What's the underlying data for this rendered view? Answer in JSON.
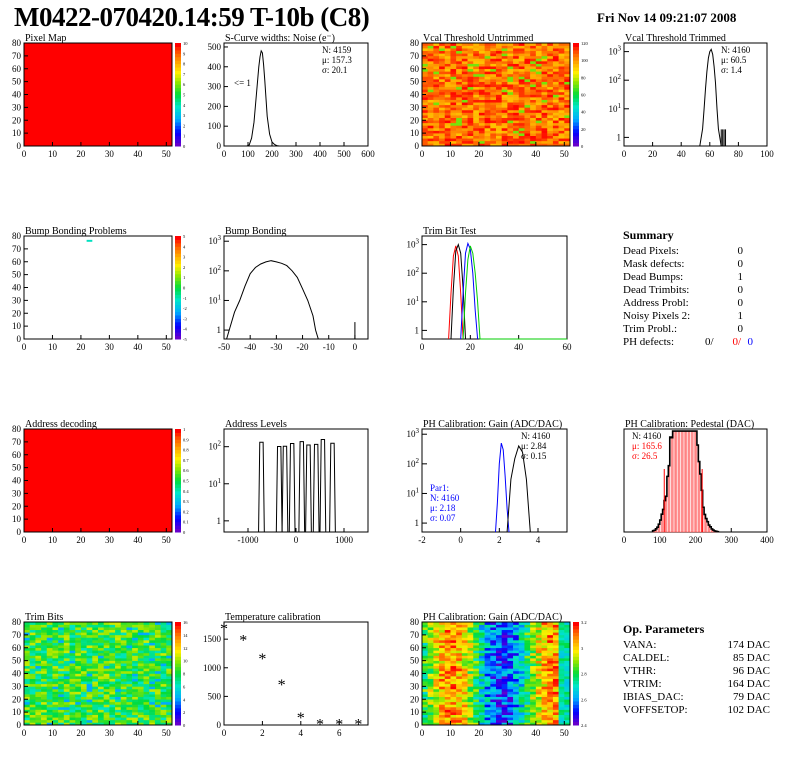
{
  "header": {
    "title": "M0422-070420.14:59 T-10b (C8)",
    "date": "Fri Nov 14 09:21:07 2008"
  },
  "summary": {
    "title": "Summary",
    "rows": [
      {
        "label": "Dead Pixels:",
        "value": "0"
      },
      {
        "label": "Mask defects:",
        "value": "0"
      },
      {
        "label": "Dead Bumps:",
        "value": "1"
      },
      {
        "label": "Dead Trimbits:",
        "value": "0"
      },
      {
        "label": "Address Probl:",
        "value": "0"
      },
      {
        "label": "Noisy Pixels 2:",
        "value": "1"
      },
      {
        "label": "Trim Probl.:",
        "value": "0"
      }
    ],
    "ph_defects": {
      "label": "PH defects:",
      "black": "0/",
      "red": "0/",
      "blue": "0"
    }
  },
  "op_params": {
    "title": "Op. Parameters",
    "rows": [
      {
        "label": "VANA:",
        "value": "174 DAC"
      },
      {
        "label": "CALDEL:",
        "value": "85 DAC"
      },
      {
        "label": "VTHR:",
        "value": "96 DAC"
      },
      {
        "label": "VTRIM:",
        "value": "164 DAC"
      },
      {
        "label": "IBIAS_DAC:",
        "value": "79 DAC"
      },
      {
        "label": "VOFFSETOP:",
        "value": "102 DAC"
      }
    ]
  },
  "colors": {
    "red": "#ff0000",
    "blue": "#0000ff",
    "green": "#00cc00",
    "black": "#000000"
  },
  "chart_data": [
    {
      "id": "pixel-map",
      "type": "heatmap",
      "title": "Pixel Map",
      "xlim": [
        0,
        52
      ],
      "ylim": [
        0,
        80
      ],
      "xticks": [
        0,
        10,
        20,
        30,
        40,
        50
      ],
      "yticks": [
        0,
        10,
        20,
        30,
        40,
        50,
        60,
        70,
        80
      ],
      "palette": "uniform-red",
      "value": 10,
      "zlim": [
        0,
        10
      ],
      "zticks": [
        "0",
        "1",
        "2",
        "3",
        "4",
        "5",
        "6",
        "7",
        "8",
        "9",
        "10"
      ]
    },
    {
      "id": "s-curve",
      "type": "line",
      "title": "S-Curve widths: Noise (e⁻)",
      "xlim": [
        0,
        600
      ],
      "ylim": [
        0,
        520
      ],
      "xticks": [
        0,
        100,
        200,
        300,
        400,
        500,
        600
      ],
      "yticks": [
        0,
        100,
        200,
        300,
        400,
        500
      ],
      "stats": [
        "N: 4159",
        "μ: 157.3",
        "σ: 20.1"
      ],
      "annotation": "<= 1",
      "series": [
        {
          "color": "#000000",
          "x": [
            95,
            105,
            115,
            125,
            135,
            145,
            150,
            155,
            160,
            165,
            170,
            175,
            180,
            190,
            200,
            210,
            220,
            230
          ],
          "y": [
            0,
            5,
            40,
            120,
            260,
            400,
            450,
            480,
            470,
            410,
            330,
            240,
            150,
            60,
            20,
            8,
            2,
            0
          ]
        }
      ]
    },
    {
      "id": "vcal-untrimmed",
      "type": "heatmap",
      "title": "Vcal Threshold Untrimmed",
      "xlim": [
        0,
        52
      ],
      "ylim": [
        0,
        80
      ],
      "xticks": [
        0,
        10,
        20,
        30,
        40,
        50
      ],
      "yticks": [
        0,
        10,
        20,
        30,
        40,
        50,
        60,
        70,
        80
      ],
      "palette": "orange-noisy",
      "zticks": [
        "0",
        "20",
        "40",
        "60",
        "80",
        "100",
        "120"
      ]
    },
    {
      "id": "vcal-trimmed",
      "type": "line",
      "title": "Vcal Threshold Trimmed",
      "log": true,
      "xlim": [
        0,
        100
      ],
      "ylim": [
        0.5,
        2000
      ],
      "xticks": [
        0,
        20,
        40,
        60,
        80,
        100
      ],
      "stats": [
        "N: 4160",
        "μ: 60.5",
        "σ:  1.4"
      ],
      "series": [
        {
          "color": "#000000",
          "x": [
            53,
            55,
            56,
            57,
            58,
            59,
            60,
            61,
            62,
            63,
            64,
            65,
            66,
            67,
            68
          ],
          "y": [
            0.5,
            2,
            10,
            50,
            200,
            600,
            1000,
            1200,
            800,
            300,
            80,
            10,
            2,
            1,
            0.5
          ]
        }
      ],
      "spikes": [
        {
          "x": 68,
          "y": 1
        },
        {
          "x": 69,
          "y": 1
        },
        {
          "x": 70,
          "y": 1
        },
        {
          "x": 71,
          "y": 1
        }
      ]
    },
    {
      "id": "bump-map",
      "type": "heatmap",
      "title": "Bump Bonding Problems",
      "xlim": [
        0,
        52
      ],
      "ylim": [
        0,
        80
      ],
      "xticks": [
        0,
        10,
        20,
        30,
        40,
        50
      ],
      "yticks": [
        0,
        10,
        20,
        30,
        40,
        50,
        60,
        70,
        80
      ],
      "palette": "empty",
      "zticks": [
        "-5",
        "-4",
        "-3",
        "-2",
        "-1",
        "0",
        "1",
        "2",
        "3",
        "4",
        "5"
      ],
      "cells": [
        {
          "x": 22,
          "y": 77
        }
      ]
    },
    {
      "id": "bump-bonding",
      "type": "line",
      "title": "Bump Bonding",
      "log": true,
      "xlim": [
        -50,
        5
      ],
      "ylim": [
        0.5,
        1500
      ],
      "xticks": [
        -50,
        -40,
        -30,
        -20,
        -10,
        0
      ],
      "series": [
        {
          "color": "#000000",
          "x": [
            -49,
            -48,
            -46,
            -44,
            -42,
            -40,
            -38,
            -36,
            -34,
            -32,
            -30,
            -28,
            -26,
            -24,
            -22,
            -20,
            -18,
            -16,
            -15,
            -14
          ],
          "y": [
            0.5,
            1,
            4,
            10,
            30,
            80,
            130,
            170,
            200,
            220,
            200,
            180,
            150,
            100,
            60,
            25,
            10,
            3,
            1,
            0.5
          ]
        }
      ],
      "spikes": [
        {
          "x": 0,
          "y": 1
        }
      ]
    },
    {
      "id": "trim-bit-test",
      "type": "line",
      "title": "Trim Bit Test",
      "log": true,
      "xlim": [
        0,
        60
      ],
      "ylim": [
        0.5,
        2000
      ],
      "xticks": [
        0,
        20,
        40,
        60
      ],
      "series": [
        {
          "color": "#ff0000",
          "x": [
            11,
            12,
            13,
            14,
            15,
            16,
            17
          ],
          "y": [
            0.5,
            20,
            400,
            900,
            400,
            20,
            0.5
          ]
        },
        {
          "color": "#000000",
          "x": [
            12,
            13,
            14,
            15,
            16,
            17,
            18
          ],
          "y": [
            0.5,
            30,
            600,
            1000,
            500,
            30,
            0.5
          ]
        },
        {
          "color": "#0000ff",
          "x": [
            16,
            17,
            18,
            19,
            20,
            21,
            22,
            23
          ],
          "y": [
            0.5,
            20,
            500,
            1100,
            700,
            100,
            5,
            0.5
          ]
        },
        {
          "color": "#00cc00",
          "x": [
            17,
            18,
            19,
            20,
            21,
            22,
            23,
            24,
            40,
            60
          ],
          "y": [
            0.5,
            20,
            300,
            900,
            500,
            100,
            10,
            0.5,
            0.5,
            0.5
          ]
        }
      ]
    },
    {
      "id": "address-decoding",
      "type": "heatmap",
      "title": "Address decoding",
      "xlim": [
        0,
        52
      ],
      "ylim": [
        0,
        80
      ],
      "xticks": [
        0,
        10,
        20,
        30,
        40,
        50
      ],
      "yticks": [
        0,
        10,
        20,
        30,
        40,
        50,
        60,
        70,
        80
      ],
      "palette": "uniform-red",
      "value": 1,
      "zticks": [
        "0",
        "0.1",
        "0.2",
        "0.3",
        "0.4",
        "0.5",
        "0.6",
        "0.7",
        "0.8",
        "0.9",
        "1"
      ]
    },
    {
      "id": "address-levels",
      "type": "line",
      "title": "Address Levels",
      "log": true,
      "xlim": [
        -1500,
        1500
      ],
      "ylim": [
        0.5,
        300
      ],
      "xticks": [
        -1000,
        0,
        1000
      ],
      "peaks": [
        -720,
        -350,
        -230,
        -80,
        120,
        260,
        420,
        560,
        760
      ]
    },
    {
      "id": "ph-gain",
      "type": "line",
      "title": "PH Calibration: Gain (ADC/DAC)",
      "log": true,
      "xlim": [
        -2,
        5.5
      ],
      "ylim": [
        0.5,
        1500
      ],
      "xticks": [
        -2,
        0,
        2,
        4
      ],
      "stats": [
        "N: 4160",
        "μ: 2.84",
        "σ: 0.15"
      ],
      "stats2": [
        "Par1:",
        "N: 4160",
        "μ: 2.18",
        "σ: 0.07"
      ],
      "series": [
        {
          "color": "#0000ff",
          "x": [
            1.8,
            1.9,
            2.0,
            2.1,
            2.2,
            2.3,
            2.4,
            2.5
          ],
          "y": [
            0.5,
            5,
            100,
            500,
            300,
            40,
            3,
            0.5
          ]
        },
        {
          "color": "#000000",
          "x": [
            2.4,
            2.6,
            2.8,
            3.0,
            3.2,
            3.4,
            3.6
          ],
          "y": [
            0.5,
            30,
            150,
            400,
            250,
            30,
            0.5
          ]
        }
      ]
    },
    {
      "id": "ph-pedestal",
      "type": "bar",
      "title": "PH Calibration: Pedestal (DAC)",
      "xlim": [
        0,
        400
      ],
      "ylim": [
        0,
        110
      ],
      "xticks": [
        0,
        100,
        200,
        300,
        400
      ],
      "stats": [
        "N: 4160"
      ],
      "stats_red": [
        "μ: 165.6",
        "σ: 26.5"
      ],
      "mu": 165.6,
      "sigma": 26.5,
      "n": 4160
    },
    {
      "id": "trim-bits",
      "type": "heatmap",
      "title": "Trim Bits",
      "xlim": [
        0,
        52
      ],
      "ylim": [
        0,
        80
      ],
      "xticks": [
        0,
        10,
        20,
        30,
        40,
        50
      ],
      "yticks": [
        0,
        10,
        20,
        30,
        40,
        50,
        60,
        70,
        80
      ],
      "palette": "green-noisy",
      "zticks": [
        "0",
        "2",
        "4",
        "6",
        "8",
        "10",
        "12",
        "14",
        "16"
      ]
    },
    {
      "id": "temperature",
      "type": "scatter",
      "title": "Temperature calibration",
      "xlim": [
        0,
        7.5
      ],
      "ylim": [
        0,
        1800
      ],
      "xticks": [
        0,
        2,
        4,
        6
      ],
      "yticks": [
        0,
        500,
        1000,
        1500
      ],
      "x": [
        0,
        1,
        2,
        3,
        4,
        5,
        6,
        7
      ],
      "y": [
        1680,
        1480,
        1150,
        700,
        120,
        10,
        10,
        10
      ]
    },
    {
      "id": "ph-gain-map",
      "type": "heatmap",
      "title": "PH Calibration: Gain (ADC/DAC)",
      "xlim": [
        0,
        52
      ],
      "ylim": [
        0,
        80
      ],
      "xticks": [
        0,
        10,
        20,
        30,
        40,
        50
      ],
      "yticks": [
        0,
        10,
        20,
        30,
        40,
        50,
        60,
        70,
        80
      ],
      "palette": "gain-columns",
      "zticks": [
        "2.4",
        "2.6",
        "2.8",
        "3",
        "3.2"
      ]
    }
  ]
}
